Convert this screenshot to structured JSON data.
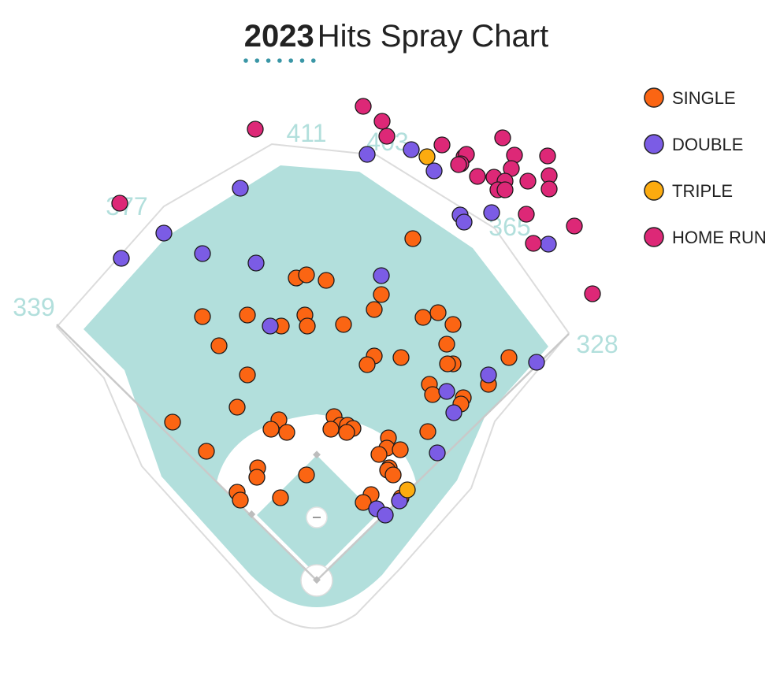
{
  "chart_data": {
    "type": "scatter",
    "title": {
      "year": "2023",
      "text": "Hits Spray Chart"
    },
    "subtitle": "",
    "xlabel": "",
    "ylabel": "",
    "grid": false,
    "legend_position": "top-right",
    "fence_distances": [
      "339",
      "377",
      "411",
      "403",
      "365",
      "328"
    ],
    "colors": {
      "grass": "#b2dfdc",
      "dirt": "#ffffff",
      "outline": "#dcdcdc",
      "title_underline": "#3a96a6"
    },
    "series": [
      {
        "name": "SINGLE",
        "color": "#fb6513",
        "points": [
          [
            524,
            303
          ],
          [
            376,
            353
          ],
          [
            389,
            349
          ],
          [
            414,
            356
          ],
          [
            484,
            374
          ],
          [
            475,
            393
          ],
          [
            257,
            402
          ],
          [
            314,
            400
          ],
          [
            357,
            414
          ],
          [
            387,
            400
          ],
          [
            390,
            414
          ],
          [
            436,
            412
          ],
          [
            537,
            403
          ],
          [
            556,
            397
          ],
          [
            575,
            412
          ],
          [
            567,
            437
          ],
          [
            278,
            439
          ],
          [
            475,
            452
          ],
          [
            466,
            463
          ],
          [
            509,
            454
          ],
          [
            575,
            462
          ],
          [
            568,
            462
          ],
          [
            646,
            454
          ],
          [
            314,
            476
          ],
          [
            545,
            488
          ],
          [
            549,
            501
          ],
          [
            620,
            488
          ],
          [
            588,
            505
          ],
          [
            585,
            513
          ],
          [
            301,
            517
          ],
          [
            219,
            536
          ],
          [
            354,
            533
          ],
          [
            344,
            545
          ],
          [
            364,
            549
          ],
          [
            424,
            529
          ],
          [
            432,
            540
          ],
          [
            441,
            540
          ],
          [
            448,
            544
          ],
          [
            420,
            545
          ],
          [
            440,
            549
          ],
          [
            543,
            548
          ],
          [
            493,
            556
          ],
          [
            491,
            569
          ],
          [
            508,
            571
          ],
          [
            481,
            577
          ],
          [
            262,
            573
          ],
          [
            327,
            594
          ],
          [
            326,
            606
          ],
          [
            389,
            603
          ],
          [
            494,
            594
          ],
          [
            492,
            597
          ],
          [
            499,
            603
          ],
          [
            301,
            625
          ],
          [
            305,
            635
          ],
          [
            356,
            632
          ],
          [
            471,
            628
          ],
          [
            461,
            638
          ],
          [
            509,
            632
          ]
        ]
      },
      {
        "name": "DOUBLE",
        "color": "#7b5ce5",
        "points": [
          [
            466,
            196
          ],
          [
            522,
            190
          ],
          [
            551,
            217
          ],
          [
            305,
            239
          ],
          [
            584,
            273
          ],
          [
            589,
            282
          ],
          [
            624,
            270
          ],
          [
            696,
            310
          ],
          [
            208,
            296
          ],
          [
            257,
            322
          ],
          [
            154,
            328
          ],
          [
            325,
            334
          ],
          [
            484,
            350
          ],
          [
            343,
            414
          ],
          [
            620,
            476
          ],
          [
            681,
            460
          ],
          [
            567,
            497
          ],
          [
            576,
            524
          ],
          [
            555,
            575
          ],
          [
            478,
            646
          ],
          [
            507,
            636
          ],
          [
            489,
            654
          ]
        ]
      },
      {
        "name": "TRIPLE",
        "color": "#fcab0f",
        "points": [
          [
            542,
            199
          ],
          [
            517,
            622
          ]
        ]
      },
      {
        "name": "HOME RUN",
        "color": "#dd2877",
        "points": [
          [
            461,
            135
          ],
          [
            324,
            164
          ],
          [
            485,
            154
          ],
          [
            491,
            173
          ],
          [
            561,
            184
          ],
          [
            589,
            199
          ],
          [
            592,
            196
          ],
          [
            585,
            208
          ],
          [
            582,
            209
          ],
          [
            638,
            175
          ],
          [
            653,
            197
          ],
          [
            649,
            214
          ],
          [
            695,
            198
          ],
          [
            606,
            224
          ],
          [
            627,
            225
          ],
          [
            641,
            230
          ],
          [
            632,
            241
          ],
          [
            641,
            241
          ],
          [
            670,
            230
          ],
          [
            697,
            223
          ],
          [
            697,
            240
          ],
          [
            668,
            272
          ],
          [
            729,
            287
          ],
          [
            677,
            309
          ],
          [
            752,
            373
          ],
          [
            152,
            258
          ]
        ]
      }
    ]
  }
}
